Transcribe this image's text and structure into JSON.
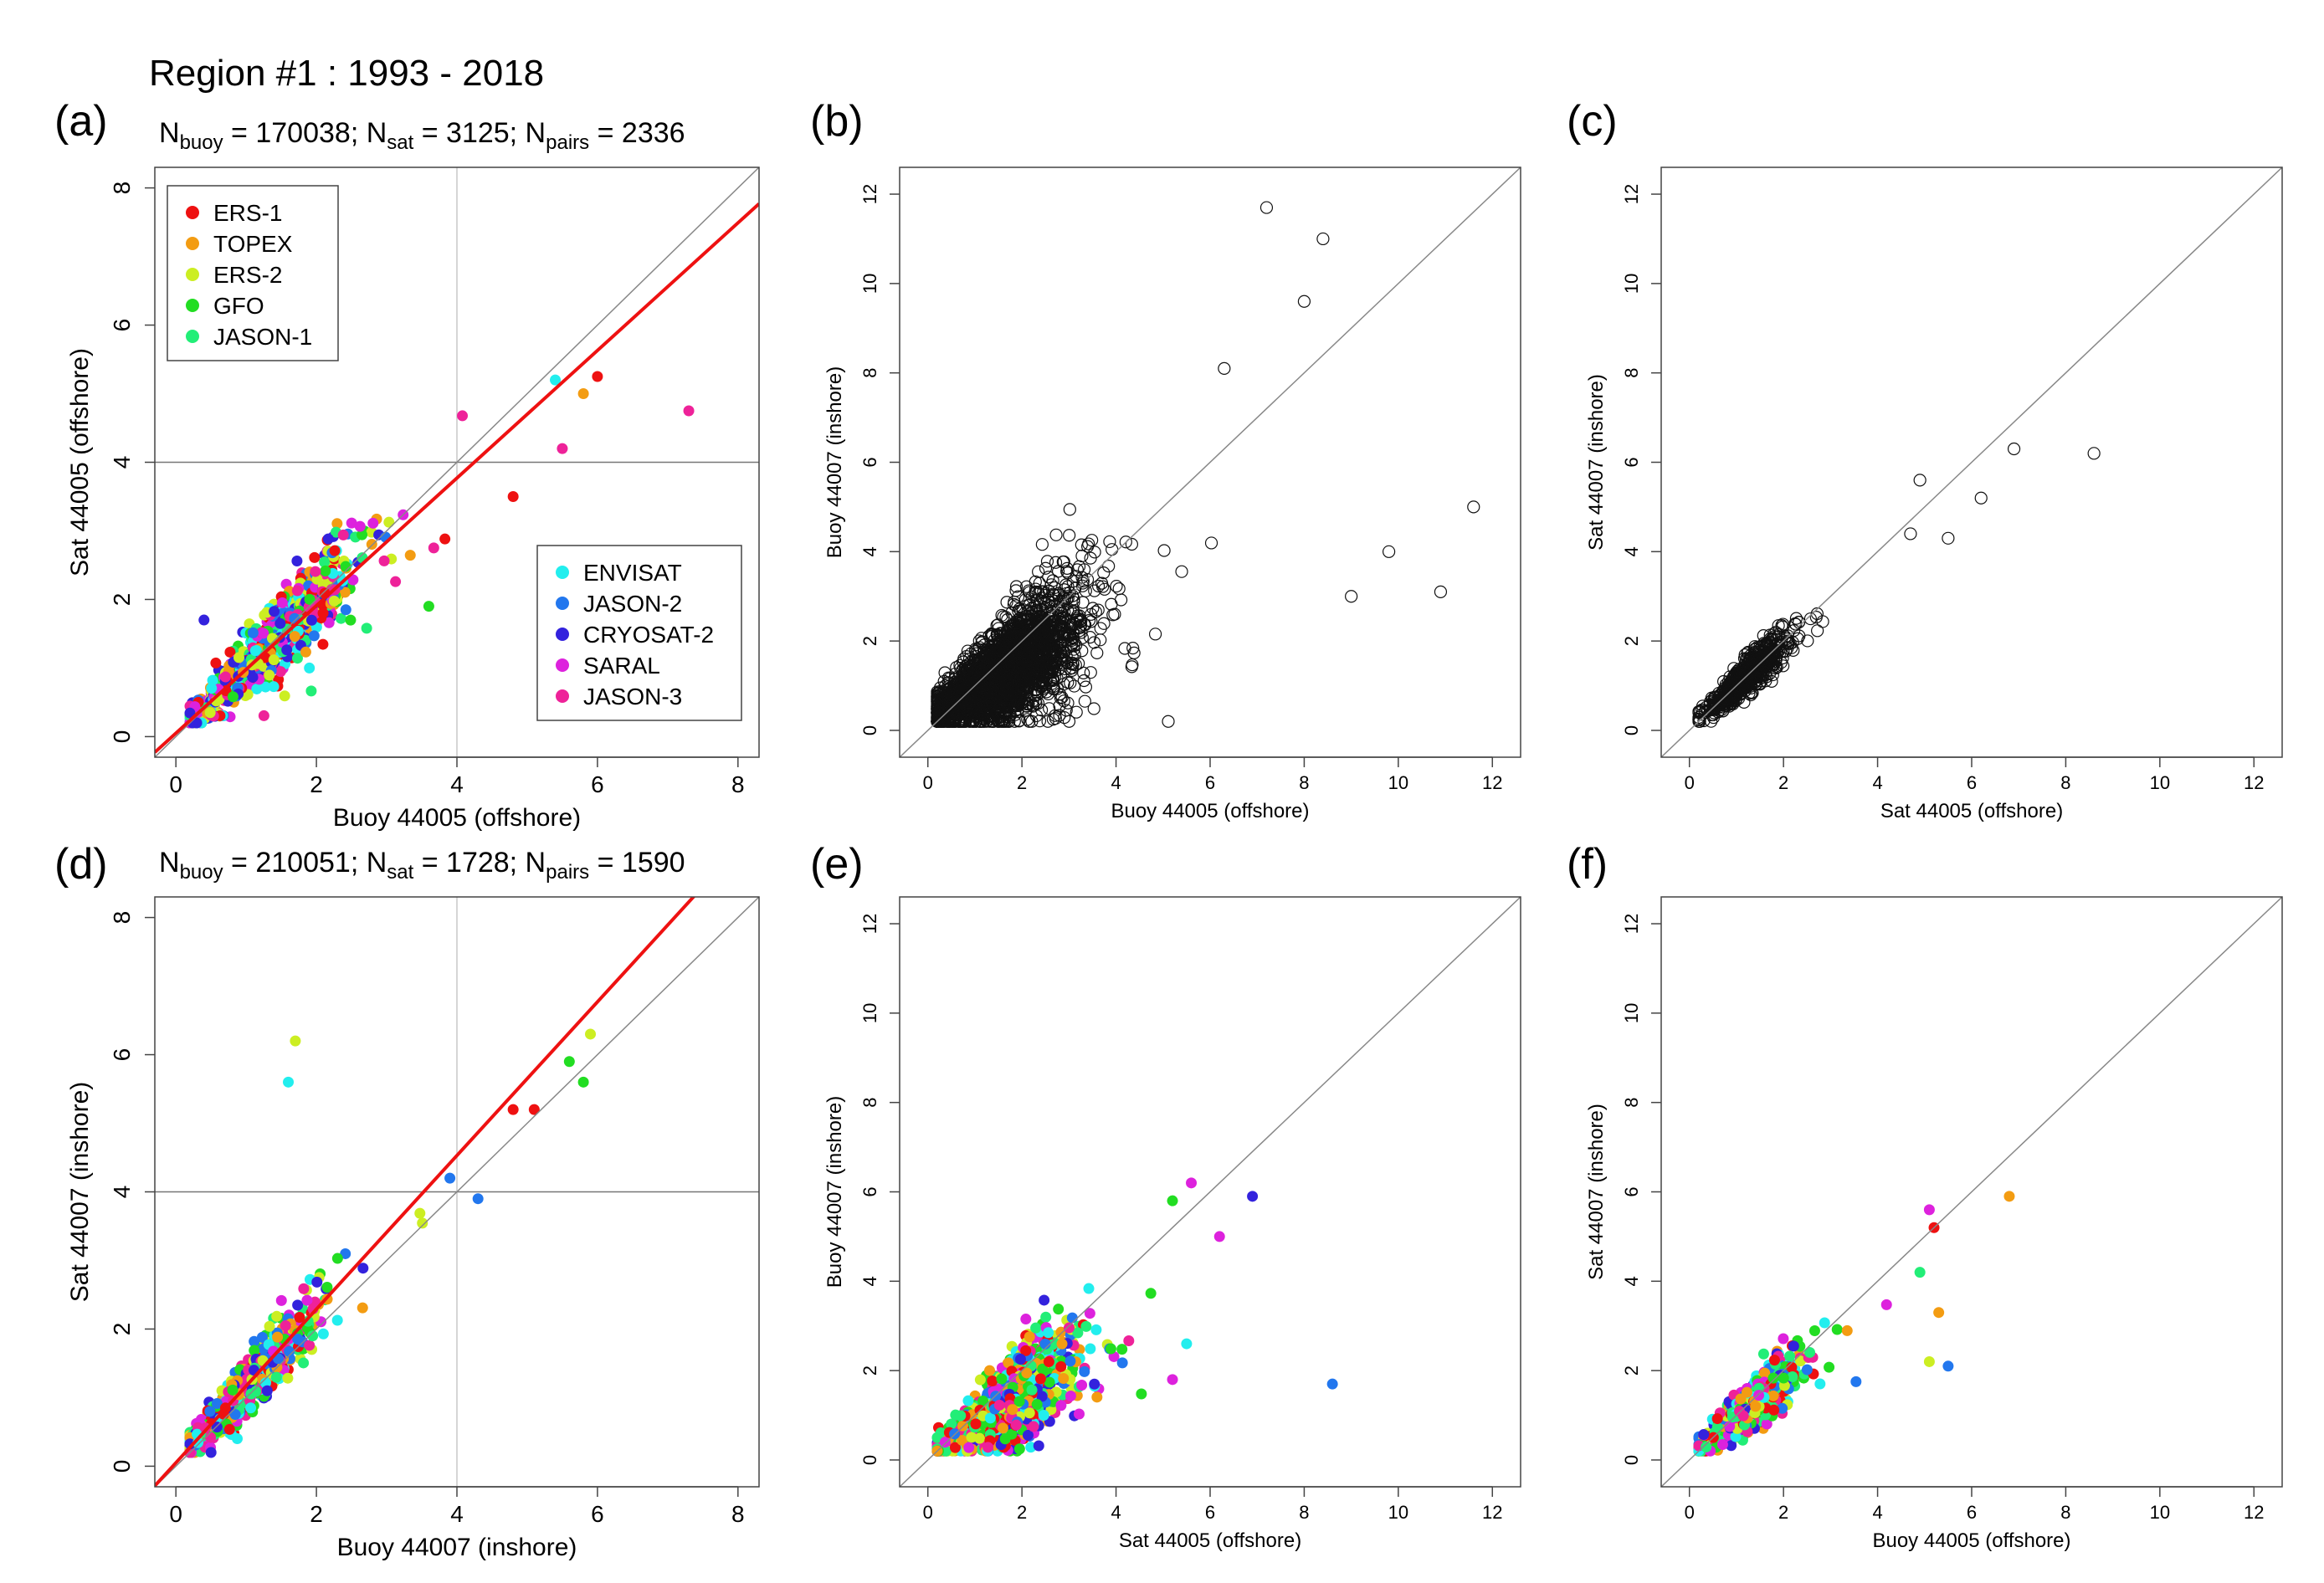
{
  "figure_title": "Region #1 :  1993 - 2018",
  "legend_top": [
    {
      "name": "ERS-1",
      "color": "#ee1111"
    },
    {
      "name": "TOPEX",
      "color": "#f39c12"
    },
    {
      "name": "ERS-2",
      "color": "#ccee22"
    },
    {
      "name": "GFO",
      "color": "#22dd22"
    },
    {
      "name": "JASON-1",
      "color": "#22ee77"
    }
  ],
  "legend_bottom": [
    {
      "name": "ENVISAT",
      "color": "#22eeee"
    },
    {
      "name": "JASON-2",
      "color": "#2277ee"
    },
    {
      "name": "CRYOSAT-2",
      "color": "#3322dd"
    },
    {
      "name": "SARAL",
      "color": "#dd22dd"
    },
    {
      "name": "JASON-3",
      "color": "#ee2299"
    }
  ],
  "chart_data": [
    {
      "id": "a",
      "panel_label": "(a)",
      "type": "scatter",
      "stats": {
        "n_buoy": "170038",
        "n_sat": "3125",
        "n_pairs": "2336"
      },
      "xlabel": "Buoy 44005 (offshore)",
      "ylabel": "Sat 44005 (offshore)",
      "xlim": [
        -0.3,
        8.3
      ],
      "ylim": [
        -0.3,
        8.3
      ],
      "xticks": [
        0,
        2,
        4,
        6,
        8
      ],
      "yticks": [
        0,
        2,
        4,
        6,
        8
      ],
      "style": "colored",
      "legend": true,
      "one_to_one": true,
      "vline": 4,
      "hline": 4,
      "fit": {
        "slope": 0.93,
        "intercept": 0.05,
        "color": "#ee1111"
      },
      "cloud": {
        "n": 900,
        "center_x": 1.4,
        "spread": 0.75,
        "slope": 1.0,
        "intercept": 0.0,
        "noise": 0.28
      },
      "highlights": [
        [
          7.3,
          4.75
        ],
        [
          5.4,
          5.2
        ],
        [
          5.8,
          5.0
        ],
        [
          6.0,
          5.25
        ],
        [
          4.8,
          3.5
        ],
        [
          5.5,
          4.2
        ],
        [
          3.6,
          1.9
        ],
        [
          1.9,
          1.0
        ],
        [
          0.4,
          1.7
        ]
      ]
    },
    {
      "id": "b",
      "panel_label": "(b)",
      "type": "scatter",
      "xlabel": "Buoy 44005 (offshore)",
      "ylabel": "Buoy 44007 (inshore)",
      "xlim": [
        -0.6,
        12.6
      ],
      "ylim": [
        -0.6,
        12.6
      ],
      "xticks": [
        0,
        2,
        4,
        6,
        8,
        10,
        12
      ],
      "yticks": [
        0,
        2,
        4,
        6,
        8,
        10,
        12
      ],
      "style": "open",
      "one_to_one": true,
      "cloud": {
        "n": 2600,
        "center_x": 1.6,
        "spread": 1.05,
        "slope": 0.65,
        "intercept": 0.25,
        "noise": 0.55
      },
      "highlights": [
        [
          7.2,
          11.7
        ],
        [
          8.4,
          11.0
        ],
        [
          8.0,
          9.6
        ],
        [
          11.6,
          5.0
        ],
        [
          9.8,
          4.0
        ],
        [
          10.9,
          3.1
        ],
        [
          9.0,
          3.0
        ],
        [
          6.3,
          8.1
        ]
      ]
    },
    {
      "id": "c",
      "panel_label": "(c)",
      "type": "scatter",
      "xlabel": "Sat 44005 (offshore)",
      "ylabel": "Sat 44007 (inshore)",
      "xlim": [
        -0.6,
        12.6
      ],
      "ylim": [
        -0.6,
        12.6
      ],
      "xticks": [
        0,
        2,
        4,
        6,
        8,
        10,
        12
      ],
      "yticks": [
        0,
        2,
        4,
        6,
        8,
        10,
        12
      ],
      "style": "open",
      "one_to_one": true,
      "cloud": {
        "n": 700,
        "center_x": 1.2,
        "spread": 0.55,
        "slope": 0.95,
        "intercept": 0.05,
        "noise": 0.22
      },
      "highlights": [
        [
          8.6,
          6.2
        ],
        [
          6.9,
          6.3
        ],
        [
          6.2,
          5.2
        ],
        [
          4.9,
          5.6
        ],
        [
          5.5,
          4.3
        ],
        [
          4.7,
          4.4
        ]
      ]
    },
    {
      "id": "d",
      "panel_label": "(d)",
      "type": "scatter",
      "stats": {
        "n_buoy": "210051",
        "n_sat": "1728",
        "n_pairs": "1590"
      },
      "xlabel": "Buoy 44007 (inshore)",
      "ylabel": "Sat 44007 (inshore)",
      "xlim": [
        -0.3,
        8.3
      ],
      "ylim": [
        -0.3,
        8.3
      ],
      "xticks": [
        0,
        2,
        4,
        6,
        8
      ],
      "yticks": [
        0,
        2,
        4,
        6,
        8
      ],
      "style": "colored",
      "one_to_one": true,
      "vline": 4,
      "hline": 4,
      "fit": {
        "slope": 1.12,
        "intercept": 0.05,
        "color": "#ee1111"
      },
      "cloud": {
        "n": 800,
        "center_x": 1.0,
        "spread": 0.6,
        "slope": 1.1,
        "intercept": 0.05,
        "noise": 0.25
      },
      "highlights": [
        [
          1.7,
          6.2
        ],
        [
          1.6,
          5.6
        ],
        [
          5.9,
          6.3
        ],
        [
          5.6,
          5.9
        ],
        [
          5.8,
          5.6
        ],
        [
          5.1,
          5.2
        ],
        [
          4.8,
          5.2
        ],
        [
          4.3,
          3.9
        ],
        [
          3.9,
          4.2
        ]
      ]
    },
    {
      "id": "e",
      "panel_label": "(e)",
      "type": "scatter",
      "xlabel": "Sat 44005 (offshore)",
      "ylabel": "Buoy 44007 (inshore)",
      "xlim": [
        -0.6,
        12.6
      ],
      "ylim": [
        -0.6,
        12.6
      ],
      "xticks": [
        0,
        2,
        4,
        6,
        8,
        10,
        12
      ],
      "yticks": [
        0,
        2,
        4,
        6,
        8,
        10,
        12
      ],
      "style": "colored",
      "one_to_one": true,
      "cloud": {
        "n": 1100,
        "center_x": 1.7,
        "spread": 0.8,
        "slope": 0.7,
        "intercept": 0.1,
        "noise": 0.45
      },
      "highlights": [
        [
          8.6,
          1.7
        ],
        [
          5.6,
          6.2
        ],
        [
          6.9,
          5.9
        ],
        [
          5.2,
          5.8
        ],
        [
          6.2,
          5.0
        ],
        [
          5.5,
          2.6
        ],
        [
          5.2,
          1.8
        ]
      ]
    },
    {
      "id": "f",
      "panel_label": "(f)",
      "type": "scatter",
      "xlabel": "Buoy 44005 (offshore)",
      "ylabel": "Sat 44007 (inshore)",
      "xlim": [
        -0.6,
        12.6
      ],
      "ylim": [
        -0.6,
        12.6
      ],
      "xticks": [
        0,
        2,
        4,
        6,
        8,
        10,
        12
      ],
      "yticks": [
        0,
        2,
        4,
        6,
        8,
        10,
        12
      ],
      "style": "colored",
      "one_to_one": true,
      "cloud": {
        "n": 650,
        "center_x": 1.3,
        "spread": 0.65,
        "slope": 0.85,
        "intercept": 0.1,
        "noise": 0.3
      },
      "highlights": [
        [
          6.8,
          5.9
        ],
        [
          5.1,
          5.6
        ],
        [
          5.2,
          5.2
        ],
        [
          4.9,
          4.2
        ],
        [
          5.3,
          3.3
        ],
        [
          5.1,
          2.2
        ],
        [
          5.5,
          2.1
        ]
      ]
    }
  ]
}
